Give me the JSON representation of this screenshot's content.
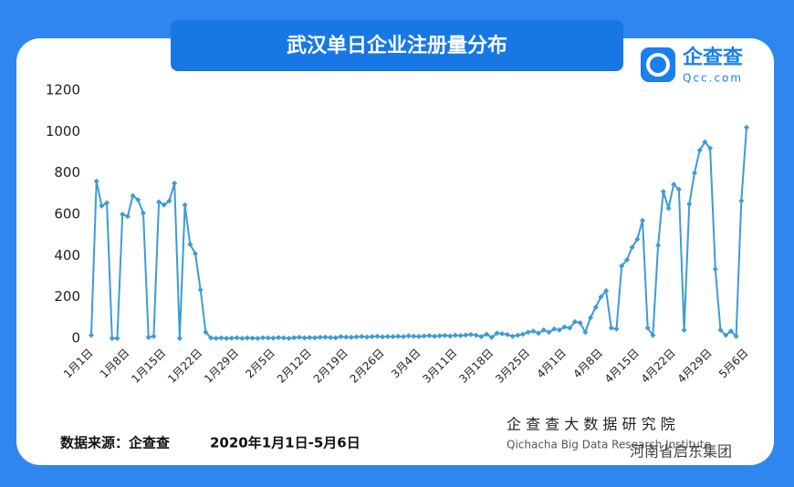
{
  "chart_data": {
    "type": "line",
    "title": "武汉单日企业注册量分布",
    "categories": [
      "1月1日",
      null,
      null,
      null,
      null,
      null,
      null,
      "1月8日",
      null,
      null,
      null,
      null,
      null,
      null,
      "1月15日",
      null,
      null,
      null,
      null,
      null,
      null,
      "1月22日",
      null,
      null,
      null,
      null,
      null,
      null,
      "1月29日",
      null,
      null,
      null,
      null,
      null,
      null,
      "2月5日",
      null,
      null,
      null,
      null,
      null,
      null,
      "2月12日",
      null,
      null,
      null,
      null,
      null,
      null,
      "2月19日",
      null,
      null,
      null,
      null,
      null,
      null,
      "2月26日",
      null,
      null,
      null,
      null,
      null,
      null,
      "3月4日",
      null,
      null,
      null,
      null,
      null,
      null,
      "3月11日",
      null,
      null,
      null,
      null,
      null,
      null,
      "3月18日",
      null,
      null,
      null,
      null,
      null,
      null,
      "3月25日",
      null,
      null,
      null,
      null,
      null,
      null,
      "4月1日",
      null,
      null,
      null,
      null,
      null,
      null,
      "4月8日",
      null,
      null,
      null,
      null,
      null,
      null,
      "4月15日",
      null,
      null,
      null,
      null,
      null,
      null,
      "4月22日",
      null,
      null,
      null,
      null,
      null,
      null,
      "4月29日",
      null,
      null,
      null,
      null,
      null,
      null,
      "5月6日"
    ],
    "values": [
      15,
      760,
      640,
      655,
      0,
      0,
      600,
      590,
      690,
      670,
      605,
      5,
      10,
      660,
      645,
      665,
      750,
      0,
      645,
      455,
      410,
      235,
      30,
      2,
      0,
      2,
      0,
      1,
      3,
      0,
      2,
      1,
      0,
      3,
      2,
      1,
      4,
      2,
      0,
      3,
      5,
      2,
      4,
      3,
      5,
      6,
      4,
      3,
      8,
      6,
      5,
      7,
      9,
      6,
      8,
      10,
      7,
      9,
      8,
      10,
      8,
      12,
      10,
      9,
      11,
      13,
      10,
      12,
      14,
      11,
      15,
      13,
      16,
      18,
      15,
      8,
      20,
      5,
      25,
      22,
      18,
      10,
      15,
      20,
      30,
      35,
      25,
      40,
      30,
      45,
      40,
      55,
      50,
      80,
      75,
      30,
      100,
      150,
      200,
      230,
      50,
      45,
      350,
      380,
      440,
      480,
      570,
      50,
      15,
      450,
      710,
      630,
      745,
      720,
      40,
      650,
      800,
      910,
      950,
      920,
      335,
      40,
      15,
      35,
      10,
      665,
      1020
    ],
    "color": "#3d9bd6",
    "ylim": [
      0,
      1200
    ],
    "yticks": [
      0,
      200,
      400,
      600,
      800,
      1000,
      1200
    ],
    "grid": false
  },
  "logo": {
    "name": "企查查",
    "site": "Qcc.com"
  },
  "source": "数据来源：企查查",
  "date_range": "2020年1月1日-5月6日",
  "institute": {
    "name": "企 查 查 大 数 据 研 究 院",
    "english": "Qichacha Big Data Research Institute"
  },
  "watermark": "河南省启东集团"
}
